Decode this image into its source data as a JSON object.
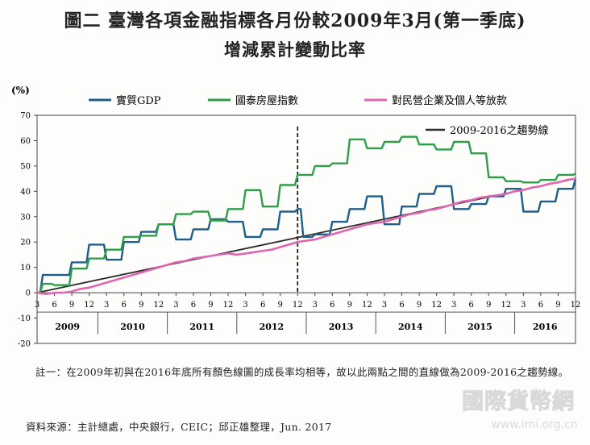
{
  "title_line1": "圖二 臺灣各項金融指標各月份較2009年3月(第一季底)",
  "title_line2": "增減累計變動比率",
  "note": "註一：在2009年初與在2016年底所有顏色線圖的成長率均相等，故以此兩點之間的直線做為2009-2016之趨勢線。",
  "source": "資料來源：主計總處，中央銀行，CEIC；邱正雄整理，Jun. 2017",
  "watermark": {
    "text": "國際貨幣網",
    "url": "www.imi.org.cn"
  },
  "chart_data": {
    "type": "line",
    "ylabel": "(%)",
    "ylim": [
      -20,
      70
    ],
    "yticks": [
      -20,
      -10,
      0,
      10,
      20,
      30,
      40,
      50,
      60,
      70
    ],
    "x_month_labels": [
      "3",
      "6",
      "9",
      "12",
      "3",
      "6",
      "9",
      "12",
      "3",
      "6",
      "9",
      "12",
      "3",
      "6",
      "9",
      "12",
      "3",
      "6",
      "9",
      "12",
      "3",
      "6",
      "9",
      "12",
      "3",
      "6",
      "9",
      "12",
      "3",
      "6",
      "9",
      "12"
    ],
    "x_year_labels": [
      "2009",
      "2010",
      "2011",
      "2012",
      "2013",
      "2014",
      "2015",
      "2016"
    ],
    "year_dividers_after_quarter": [
      4,
      8,
      12,
      16,
      20,
      24,
      28
    ],
    "vline_label": "12",
    "vline_at_quarter": 15,
    "grid": false,
    "legend_position": "top",
    "colors": {
      "gdp": "#1f5f8b",
      "house": "#2e9e48",
      "loan": "#e066b2",
      "trend": "#2b2b2b",
      "vline": "#222222"
    },
    "series": [
      {
        "name": "實質GDP",
        "key": "gdp",
        "x": [
          0,
          0.33,
          1,
          2,
          3,
          4,
          5,
          6,
          7,
          8,
          9,
          10,
          11,
          12,
          13,
          14,
          15,
          15.33,
          16,
          17,
          18,
          19,
          20,
          21,
          22,
          23,
          24,
          25,
          26,
          27,
          28,
          29,
          30,
          31
        ],
        "values": [
          0,
          7,
          7,
          12,
          19,
          13,
          20,
          24,
          27,
          21,
          25,
          29,
          28,
          22,
          25,
          32,
          33,
          22,
          23,
          28,
          33,
          38,
          27,
          34,
          39,
          42,
          33,
          35,
          38,
          41,
          32,
          36,
          41,
          45
        ]
      },
      {
        "name": "國泰房屋指數",
        "key": "house",
        "x": [
          0,
          0.33,
          1,
          2,
          3,
          4,
          5,
          6,
          7,
          8,
          9,
          10,
          11,
          12,
          13,
          14,
          15,
          16,
          17,
          18,
          19,
          20,
          21,
          22,
          23,
          24,
          25,
          26,
          27,
          28,
          29,
          30,
          31
        ],
        "values": [
          0,
          3.5,
          3,
          9.5,
          13.5,
          17,
          22,
          22.5,
          27,
          31,
          32,
          28.5,
          33,
          40.5,
          34,
          42.5,
          46.5,
          50,
          51,
          60.5,
          57,
          59.5,
          61.5,
          58.5,
          56.5,
          59.5,
          55,
          45.5,
          44,
          43.5,
          44.5,
          46.5,
          47
        ]
      },
      {
        "name": "對民營企業及個人等放款",
        "key": "loan",
        "x": [
          0,
          0.5,
          1,
          1.5,
          2,
          2.5,
          3,
          3.5,
          4,
          4.5,
          5,
          5.5,
          6,
          6.5,
          7,
          7.5,
          8,
          8.5,
          9,
          9.5,
          10,
          10.5,
          11,
          11.5,
          12,
          12.5,
          13,
          13.5,
          14,
          14.5,
          15,
          15.5,
          16,
          16.5,
          17,
          17.5,
          18,
          18.5,
          19,
          19.5,
          20,
          20.5,
          21,
          21.5,
          22,
          22.5,
          23,
          23.5,
          24,
          24.5,
          25,
          25.5,
          26,
          26.5,
          27,
          27.5,
          28,
          28.5,
          29,
          29.5,
          30,
          30.5,
          31
        ],
        "values": [
          0,
          -0.5,
          0,
          0,
          0.5,
          1.5,
          2,
          3,
          4,
          5,
          6,
          7,
          8,
          9,
          10,
          11,
          12,
          12.5,
          13.5,
          14,
          14.5,
          15,
          15.5,
          15,
          15.5,
          16,
          16.5,
          17,
          18,
          19,
          20,
          20.5,
          21,
          22,
          23,
          24,
          25,
          26,
          27,
          27.5,
          28,
          29,
          30,
          31,
          31.5,
          32.5,
          33,
          34,
          35,
          36,
          36.5,
          37.5,
          38,
          38.5,
          39,
          40,
          40.5,
          41.5,
          42,
          43,
          43.5,
          44.5,
          45
        ]
      }
    ],
    "trend": {
      "name": "2009-2016之趨勢線",
      "key": "trend",
      "x": [
        0,
        31
      ],
      "values": [
        0,
        45
      ]
    }
  }
}
